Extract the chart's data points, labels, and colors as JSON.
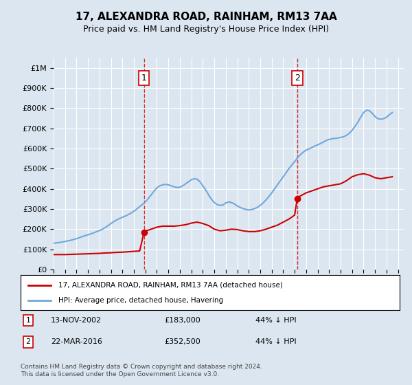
{
  "title": "17, ALEXANDRA ROAD, RAINHAM, RM13 7AA",
  "subtitle": "Price paid vs. HM Land Registry's House Price Index (HPI)",
  "background_color": "#dce6f0",
  "plot_bg_color": "#dce6f0",
  "sale1_date": "13-NOV-2002",
  "sale1_price": 183000,
  "sale1_label": "1",
  "sale2_date": "22-MAR-2016",
  "sale2_price": 352500,
  "sale2_label": "2",
  "hpi_color": "#6fa8dc",
  "price_color": "#cc0000",
  "vline_color": "#cc0000",
  "marker_color": "#cc0000",
  "ylim": [
    0,
    1050000
  ],
  "xlim_start": 1995.0,
  "xlim_end": 2025.5,
  "legend_label_price": "17, ALEXANDRA ROAD, RAINHAM, RM13 7AA (detached house)",
  "legend_label_hpi": "HPI: Average price, detached house, Havering",
  "footnote": "Contains HM Land Registry data © Crown copyright and database right 2024.\nThis data is licensed under the Open Government Licence v3.0.",
  "sale1_info": "1   13-NOV-2002        £183,000        44% ↓ HPI",
  "sale2_info": "2   22-MAR-2016        £352,500        44% ↓ HPI",
  "hpi_x": [
    1995.0,
    1995.25,
    1995.5,
    1995.75,
    1996.0,
    1996.25,
    1996.5,
    1996.75,
    1997.0,
    1997.25,
    1997.5,
    1997.75,
    1998.0,
    1998.25,
    1998.5,
    1998.75,
    1999.0,
    1999.25,
    1999.5,
    1999.75,
    2000.0,
    2000.25,
    2000.5,
    2000.75,
    2001.0,
    2001.25,
    2001.5,
    2001.75,
    2002.0,
    2002.25,
    2002.5,
    2002.75,
    2003.0,
    2003.25,
    2003.5,
    2003.75,
    2004.0,
    2004.25,
    2004.5,
    2004.75,
    2005.0,
    2005.25,
    2005.5,
    2005.75,
    2006.0,
    2006.25,
    2006.5,
    2006.75,
    2007.0,
    2007.25,
    2007.5,
    2007.75,
    2008.0,
    2008.25,
    2008.5,
    2008.75,
    2009.0,
    2009.25,
    2009.5,
    2009.75,
    2010.0,
    2010.25,
    2010.5,
    2010.75,
    2011.0,
    2011.25,
    2011.5,
    2011.75,
    2012.0,
    2012.25,
    2012.5,
    2012.75,
    2013.0,
    2013.25,
    2013.5,
    2013.75,
    2014.0,
    2014.25,
    2014.5,
    2014.75,
    2015.0,
    2015.25,
    2015.5,
    2015.75,
    2016.0,
    2016.25,
    2016.5,
    2016.75,
    2017.0,
    2017.25,
    2017.5,
    2017.75,
    2018.0,
    2018.25,
    2018.5,
    2018.75,
    2019.0,
    2019.25,
    2019.5,
    2019.75,
    2020.0,
    2020.25,
    2020.5,
    2020.75,
    2021.0,
    2021.25,
    2021.5,
    2021.75,
    2022.0,
    2022.25,
    2022.5,
    2022.75,
    2023.0,
    2023.25,
    2023.5,
    2023.75,
    2024.0,
    2024.25,
    2024.5
  ],
  "hpi_y": [
    130000,
    132000,
    134000,
    136000,
    139000,
    142000,
    145000,
    149000,
    153000,
    158000,
    163000,
    168000,
    172000,
    177000,
    182000,
    188000,
    193000,
    200000,
    208000,
    218000,
    228000,
    238000,
    246000,
    253000,
    259000,
    265000,
    272000,
    280000,
    289000,
    300000,
    312000,
    323000,
    335000,
    352000,
    370000,
    388000,
    405000,
    415000,
    420000,
    422000,
    420000,
    415000,
    410000,
    407000,
    408000,
    415000,
    425000,
    435000,
    445000,
    450000,
    448000,
    435000,
    415000,
    395000,
    370000,
    348000,
    332000,
    322000,
    318000,
    320000,
    330000,
    335000,
    332000,
    325000,
    315000,
    308000,
    302000,
    298000,
    295000,
    297000,
    302000,
    308000,
    318000,
    330000,
    345000,
    362000,
    380000,
    400000,
    420000,
    440000,
    460000,
    480000,
    500000,
    518000,
    535000,
    555000,
    570000,
    582000,
    592000,
    598000,
    605000,
    612000,
    618000,
    625000,
    632000,
    640000,
    645000,
    648000,
    650000,
    652000,
    655000,
    658000,
    665000,
    675000,
    690000,
    710000,
    730000,
    755000,
    778000,
    790000,
    788000,
    775000,
    758000,
    748000,
    745000,
    748000,
    755000,
    768000,
    778000
  ],
  "price_x": [
    1995.0,
    1995.5,
    1996.0,
    1996.5,
    1997.0,
    1997.5,
    1998.0,
    1998.5,
    1999.0,
    1999.5,
    2000.0,
    2000.5,
    2001.0,
    2001.5,
    2002.0,
    2002.5,
    2002.87,
    2003.0,
    2003.5,
    2004.0,
    2004.5,
    2005.0,
    2005.5,
    2006.0,
    2006.5,
    2007.0,
    2007.5,
    2008.0,
    2008.5,
    2009.0,
    2009.5,
    2010.0,
    2010.5,
    2011.0,
    2011.5,
    2012.0,
    2012.5,
    2013.0,
    2013.5,
    2014.0,
    2014.5,
    2015.0,
    2015.5,
    2016.0,
    2016.22,
    2016.5,
    2017.0,
    2017.5,
    2018.0,
    2018.5,
    2019.0,
    2019.5,
    2020.0,
    2020.5,
    2021.0,
    2021.5,
    2022.0,
    2022.5,
    2023.0,
    2023.5,
    2024.0,
    2024.5
  ],
  "price_y": [
    74000,
    74000,
    74000,
    75000,
    76000,
    77000,
    78000,
    79000,
    80000,
    82000,
    83000,
    85000,
    86000,
    88000,
    90000,
    92000,
    183000,
    190000,
    200000,
    210000,
    215000,
    215000,
    215000,
    218000,
    222000,
    230000,
    235000,
    228000,
    218000,
    200000,
    192000,
    195000,
    200000,
    198000,
    192000,
    188000,
    188000,
    192000,
    200000,
    210000,
    220000,
    235000,
    250000,
    270000,
    352500,
    365000,
    380000,
    390000,
    400000,
    410000,
    415000,
    420000,
    425000,
    440000,
    460000,
    470000,
    475000,
    468000,
    455000,
    450000,
    455000,
    460000
  ]
}
